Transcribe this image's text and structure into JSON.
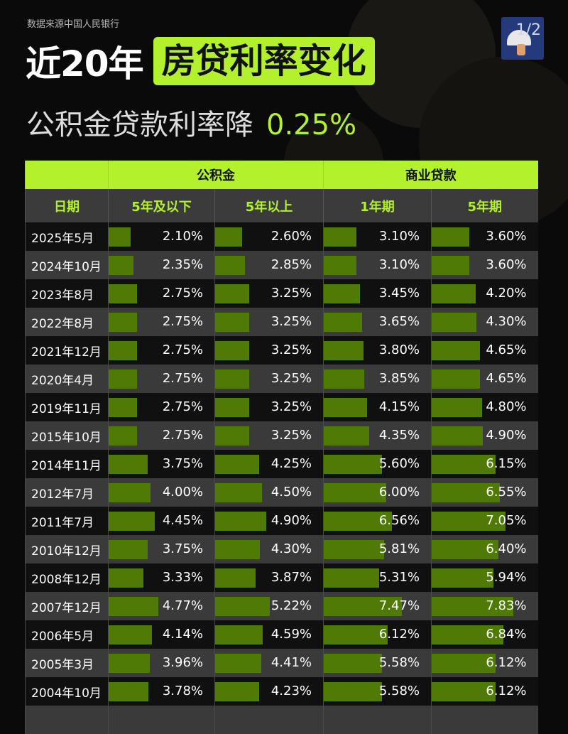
{
  "source": "数据来源中国人民银行",
  "title_prefix": "近20年",
  "title_highlight": "房贷利率变化",
  "subtitle": "公积金贷款利率降",
  "subtitle_highlight": "0.25%",
  "page_indicator": "1/2",
  "colors": {
    "accent": "#b3f12d",
    "bar": "#4e7a05",
    "background": "#0a0a0a"
  },
  "chart_data": {
    "type": "table",
    "group_headers": [
      "",
      "公积金",
      "商业贷款"
    ],
    "columns": [
      "日期",
      "5年及以下",
      "5年以上",
      "1年期",
      "5年期"
    ],
    "rows": [
      {
        "date": "2025年5月",
        "values": [
          "2.10%",
          "2.60%",
          "3.10%",
          "3.60%"
        ]
      },
      {
        "date": "2024年10月",
        "values": [
          "2.35%",
          "2.85%",
          "3.10%",
          "3.60%"
        ]
      },
      {
        "date": "2023年8月",
        "values": [
          "2.75%",
          "3.25%",
          "3.45%",
          "4.20%"
        ]
      },
      {
        "date": "2022年8月",
        "values": [
          "2.75%",
          "3.25%",
          "3.65%",
          "4.30%"
        ]
      },
      {
        "date": "2021年12月",
        "values": [
          "2.75%",
          "3.25%",
          "3.80%",
          "4.65%"
        ]
      },
      {
        "date": "2020年4月",
        "values": [
          "2.75%",
          "3.25%",
          "3.85%",
          "4.65%"
        ]
      },
      {
        "date": "2019年11月",
        "values": [
          "2.75%",
          "3.25%",
          "4.15%",
          "4.80%"
        ]
      },
      {
        "date": "2015年10月",
        "values": [
          "2.75%",
          "3.25%",
          "4.35%",
          "4.90%"
        ]
      },
      {
        "date": "2014年11月",
        "values": [
          "3.75%",
          "4.25%",
          "5.60%",
          "6.15%"
        ]
      },
      {
        "date": "2012年7月",
        "values": [
          "4.00%",
          "4.50%",
          "6.00%",
          "6.55%"
        ]
      },
      {
        "date": "2011年7月",
        "values": [
          "4.45%",
          "4.90%",
          "6.56%",
          "7.05%"
        ]
      },
      {
        "date": "2010年12月",
        "values": [
          "3.75%",
          "4.30%",
          "5.81%",
          "6.40%"
        ]
      },
      {
        "date": "2008年12月",
        "values": [
          "3.33%",
          "3.87%",
          "5.31%",
          "5.94%"
        ]
      },
      {
        "date": "2007年12月",
        "values": [
          "4.77%",
          "5.22%",
          "7.47%",
          "7.83%"
        ]
      },
      {
        "date": "2006年5月",
        "values": [
          "4.14%",
          "4.59%",
          "6.12%",
          "6.84%"
        ]
      },
      {
        "date": "2005年3月",
        "values": [
          "3.96%",
          "4.41%",
          "5.58%",
          "6.12%"
        ]
      },
      {
        "date": "2004年10月",
        "values": [
          "3.78%",
          "4.23%",
          "5.58%",
          "6.12%"
        ]
      }
    ]
  }
}
